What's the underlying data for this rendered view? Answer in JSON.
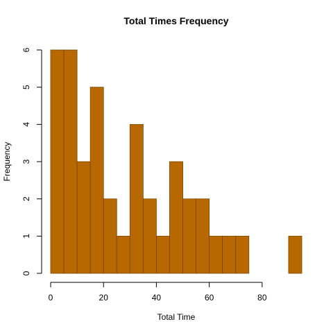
{
  "chart_data": {
    "type": "bar",
    "title": "Total Times Frequency",
    "xlabel": "Total Time",
    "ylabel": "Frequency",
    "bin_width": 5,
    "bins": [
      {
        "start": 0,
        "end": 5,
        "count": 6
      },
      {
        "start": 5,
        "end": 10,
        "count": 6
      },
      {
        "start": 10,
        "end": 15,
        "count": 3
      },
      {
        "start": 15,
        "end": 20,
        "count": 5
      },
      {
        "start": 20,
        "end": 25,
        "count": 2
      },
      {
        "start": 25,
        "end": 30,
        "count": 1
      },
      {
        "start": 30,
        "end": 35,
        "count": 4
      },
      {
        "start": 35,
        "end": 40,
        "count": 2
      },
      {
        "start": 40,
        "end": 45,
        "count": 1
      },
      {
        "start": 45,
        "end": 50,
        "count": 3
      },
      {
        "start": 50,
        "end": 55,
        "count": 2
      },
      {
        "start": 55,
        "end": 60,
        "count": 2
      },
      {
        "start": 60,
        "end": 65,
        "count": 1
      },
      {
        "start": 65,
        "end": 70,
        "count": 1
      },
      {
        "start": 70,
        "end": 75,
        "count": 1
      },
      {
        "start": 75,
        "end": 80,
        "count": 0
      },
      {
        "start": 80,
        "end": 85,
        "count": 0
      },
      {
        "start": 85,
        "end": 90,
        "count": 0
      },
      {
        "start": 90,
        "end": 95,
        "count": 1
      }
    ],
    "x_ticks": [
      "0",
      "20",
      "40",
      "60",
      "80"
    ],
    "y_ticks": [
      "0",
      "1",
      "2",
      "3",
      "4",
      "5",
      "6"
    ],
    "xlim": [
      0,
      95
    ],
    "ylim": [
      0,
      6
    ],
    "grid": false,
    "colors": {
      "bar_fill": "#b86800",
      "bar_stroke": "#7a4500"
    }
  }
}
